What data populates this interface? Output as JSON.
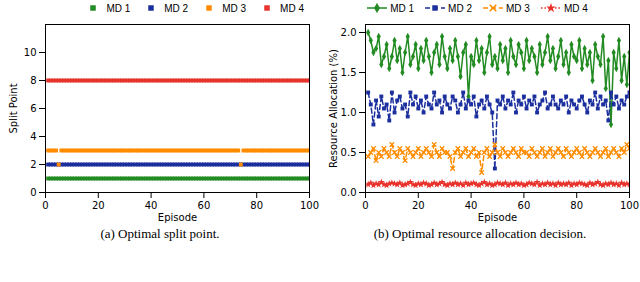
{
  "chart_data": [
    {
      "type": "scatter",
      "caption": "(a) Optimal split point.",
      "x_label": "Episode",
      "y_label": "Split Point",
      "xlim": [
        0,
        100
      ],
      "xticks": [
        0,
        20,
        40,
        60,
        80,
        100
      ],
      "ylim": [
        0,
        12
      ],
      "yticks": [
        0,
        2,
        4,
        6,
        8,
        10
      ],
      "grid": false,
      "legend": "top right",
      "x": [
        1,
        2,
        3,
        4,
        5,
        6,
        7,
        8,
        9,
        10,
        11,
        12,
        13,
        14,
        15,
        16,
        17,
        18,
        19,
        20,
        21,
        22,
        23,
        24,
        25,
        26,
        27,
        28,
        29,
        30,
        31,
        32,
        33,
        34,
        35,
        36,
        37,
        38,
        39,
        40,
        41,
        42,
        43,
        44,
        45,
        46,
        47,
        48,
        49,
        50,
        51,
        52,
        53,
        54,
        55,
        56,
        57,
        58,
        59,
        60,
        61,
        62,
        63,
        64,
        65,
        66,
        67,
        68,
        69,
        70,
        71,
        72,
        73,
        74,
        75,
        76,
        77,
        78,
        79,
        80,
        81,
        82,
        83,
        84,
        85,
        86,
        87,
        88,
        89,
        90,
        91,
        92,
        93,
        94,
        95,
        96,
        97,
        98,
        99,
        100
      ],
      "series": [
        {
          "name": "MD 1",
          "color": "#228b22",
          "marker": "square",
          "values": [
            1,
            1,
            1,
            1,
            1,
            1,
            1,
            1,
            1,
            1,
            1,
            1,
            1,
            1,
            1,
            1,
            1,
            1,
            1,
            1,
            1,
            1,
            1,
            1,
            1,
            1,
            1,
            1,
            1,
            1,
            1,
            1,
            1,
            1,
            1,
            1,
            1,
            1,
            1,
            1,
            1,
            1,
            1,
            1,
            1,
            1,
            1,
            1,
            1,
            1,
            1,
            1,
            1,
            1,
            1,
            1,
            1,
            1,
            1,
            1,
            1,
            1,
            1,
            1,
            1,
            1,
            1,
            1,
            1,
            1,
            1,
            1,
            1,
            1,
            1,
            1,
            1,
            1,
            1,
            1,
            1,
            1,
            1,
            1,
            1,
            1,
            1,
            1,
            1,
            1,
            1,
            1,
            1,
            1,
            1,
            1,
            1,
            1,
            1,
            1
          ]
        },
        {
          "name": "MD 2",
          "color": "#1c2f9e",
          "marker": "square",
          "values": [
            2,
            2,
            2,
            2,
            2,
            2,
            2,
            2,
            2,
            2,
            2,
            2,
            2,
            2,
            2,
            2,
            2,
            2,
            2,
            2,
            2,
            2,
            2,
            2,
            2,
            2,
            2,
            2,
            2,
            2,
            2,
            2,
            2,
            2,
            2,
            2,
            2,
            2,
            2,
            2,
            2,
            2,
            2,
            2,
            2,
            2,
            2,
            2,
            2,
            2,
            2,
            2,
            2,
            2,
            2,
            2,
            2,
            2,
            2,
            2,
            2,
            2,
            2,
            2,
            2,
            2,
            2,
            2,
            2,
            2,
            2,
            2,
            2,
            2,
            2,
            2,
            2,
            2,
            2,
            2,
            2,
            2,
            2,
            2,
            2,
            2,
            2,
            2,
            2,
            2,
            2,
            2,
            2,
            2,
            2,
            2,
            2,
            2,
            2,
            2
          ]
        },
        {
          "name": "MD 3",
          "color": "#ff8c00",
          "marker": "square",
          "values": [
            3,
            3,
            3,
            3,
            2,
            3,
            3,
            3,
            3,
            3,
            3,
            3,
            3,
            3,
            3,
            3,
            3,
            3,
            3,
            3,
            3,
            3,
            3,
            3,
            3,
            3,
            3,
            3,
            3,
            3,
            3,
            3,
            3,
            3,
            3,
            3,
            3,
            3,
            3,
            3,
            3,
            3,
            3,
            3,
            3,
            3,
            3,
            3,
            3,
            3,
            3,
            3,
            3,
            3,
            3,
            3,
            3,
            3,
            3,
            3,
            3,
            3,
            3,
            3,
            3,
            3,
            3,
            3,
            3,
            3,
            3,
            3,
            3,
            2,
            3,
            3,
            3,
            3,
            3,
            3,
            3,
            3,
            3,
            3,
            3,
            3,
            3,
            3,
            3,
            3,
            3,
            3,
            3,
            3,
            3,
            3,
            3,
            3,
            3,
            3
          ]
        },
        {
          "name": "MD 4",
          "color": "#e8322c",
          "marker": "square",
          "values": [
            8,
            8,
            8,
            8,
            8,
            8,
            8,
            8,
            8,
            8,
            8,
            8,
            8,
            8,
            8,
            8,
            8,
            8,
            8,
            8,
            8,
            8,
            8,
            8,
            8,
            8,
            8,
            8,
            8,
            8,
            8,
            8,
            8,
            8,
            8,
            8,
            8,
            8,
            8,
            8,
            8,
            8,
            8,
            8,
            8,
            8,
            8,
            8,
            8,
            8,
            8,
            8,
            8,
            8,
            8,
            8,
            8,
            8,
            8,
            8,
            8,
            8,
            8,
            8,
            8,
            8,
            8,
            8,
            8,
            8,
            8,
            8,
            8,
            8,
            8,
            8,
            8,
            8,
            8,
            8,
            8,
            8,
            8,
            8,
            8,
            8,
            8,
            8,
            8,
            8,
            8,
            8,
            8,
            8,
            8,
            8,
            8,
            8,
            8,
            8
          ]
        }
      ]
    },
    {
      "type": "line",
      "caption": "(b) Optimal resource allocation decision.",
      "x_label": "Episode",
      "y_label": "Resource Allocation (%)",
      "xlim": [
        0,
        100
      ],
      "xticks": [
        0,
        20,
        40,
        60,
        80,
        100
      ],
      "ylim": [
        0,
        2.1
      ],
      "yticks": [
        {
          "value": 0,
          "label": "0.0"
        },
        {
          "value": 0.5,
          "label": "0.5"
        },
        {
          "value": 1,
          "label": "1.0"
        },
        {
          "value": 1.5,
          "label": "1.5"
        },
        {
          "value": 2,
          "label": "2.0"
        }
      ],
      "grid": false,
      "legend": "top",
      "x": [
        1,
        2,
        3,
        4,
        5,
        6,
        7,
        8,
        9,
        10,
        11,
        12,
        13,
        14,
        15,
        16,
        17,
        18,
        19,
        20,
        21,
        22,
        23,
        24,
        25,
        26,
        27,
        28,
        29,
        30,
        31,
        32,
        33,
        34,
        35,
        36,
        37,
        38,
        39,
        40,
        41,
        42,
        43,
        44,
        45,
        46,
        47,
        48,
        49,
        50,
        51,
        52,
        53,
        54,
        55,
        56,
        57,
        58,
        59,
        60,
        61,
        62,
        63,
        64,
        65,
        66,
        67,
        68,
        69,
        70,
        71,
        72,
        73,
        74,
        75,
        76,
        77,
        78,
        79,
        80,
        81,
        82,
        83,
        84,
        85,
        86,
        87,
        88,
        89,
        90,
        91,
        92,
        93,
        94,
        95,
        96,
        97,
        98,
        99,
        100
      ],
      "series": [
        {
          "name": "MD 1",
          "color": "#228b22",
          "marker": "diamond",
          "line_style": "solid",
          "values": [
            2.0,
            1.9,
            1.75,
            1.8,
            1.95,
            1.6,
            1.7,
            1.85,
            1.55,
            1.7,
            1.9,
            1.65,
            1.8,
            1.5,
            1.75,
            1.95,
            1.6,
            1.7,
            1.85,
            1.55,
            1.8,
            1.65,
            1.9,
            1.7,
            1.5,
            1.75,
            1.85,
            1.6,
            1.95,
            1.7,
            1.55,
            1.8,
            1.65,
            1.9,
            1.7,
            1.45,
            1.75,
            1.85,
            1.2,
            1.7,
            1.6,
            1.9,
            1.65,
            1.8,
            1.5,
            1.75,
            1.95,
            1.6,
            1.7,
            1.55,
            1.85,
            1.65,
            1.8,
            1.5,
            1.9,
            1.7,
            1.6,
            1.85,
            1.75,
            1.55,
            1.9,
            1.65,
            1.8,
            1.7,
            1.5,
            1.85,
            1.6,
            1.75,
            1.95,
            1.65,
            1.8,
            1.55,
            1.7,
            1.9,
            1.6,
            1.75,
            1.5,
            1.85,
            1.7,
            1.65,
            1.9,
            1.55,
            1.8,
            1.6,
            1.75,
            1.4,
            1.85,
            1.7,
            1.6,
            1.95,
            1.3,
            1.65,
            0.85,
            1.75,
            1.55,
            1.9,
            1.4,
            1.7,
            1.35,
            1.75
          ]
        },
        {
          "name": "MD 2",
          "color": "#1c2f9e",
          "marker": "square",
          "line_style": "dashed",
          "values": [
            1.25,
            1.1,
            0.85,
            1.15,
            0.95,
            1.2,
            1.05,
            1.1,
            0.9,
            1.25,
            1.0,
            1.15,
            1.2,
            1.05,
            1.1,
            0.95,
            1.25,
            1.1,
            1.2,
            1.05,
            1.15,
            1.0,
            1.2,
            1.1,
            1.05,
            1.25,
            1.1,
            1.15,
            1.0,
            1.2,
            1.1,
            1.05,
            1.2,
            1.15,
            1.0,
            1.1,
            1.25,
            1.05,
            1.15,
            1.1,
            1.2,
            0.95,
            1.1,
            1.15,
            1.05,
            1.2,
            1.1,
            1.0,
            0.3,
            1.15,
            1.1,
            1.2,
            1.05,
            1.15,
            1.1,
            1.25,
            1.0,
            1.15,
            1.1,
            1.2,
            1.05,
            1.15,
            1.1,
            1.2,
            1.0,
            1.1,
            1.15,
            1.25,
            1.05,
            1.1,
            1.2,
            1.1,
            1.05,
            1.15,
            1.1,
            1.2,
            1.0,
            1.15,
            1.1,
            1.05,
            1.15,
            1.2,
            1.1,
            1.0,
            1.15,
            1.1,
            1.25,
            1.05,
            1.2,
            1.1,
            1.15,
            0.9,
            1.25,
            1.1,
            1.2,
            1.05,
            1.15,
            1.1,
            1.2,
            1.25
          ]
        },
        {
          "name": "MD 3",
          "color": "#ff8c00",
          "marker": "x",
          "line_style": "dashed",
          "values": [
            0.45,
            0.5,
            0.55,
            0.4,
            0.5,
            0.45,
            0.55,
            0.5,
            0.45,
            0.6,
            0.5,
            0.45,
            0.55,
            0.5,
            0.4,
            0.55,
            0.5,
            0.45,
            0.5,
            0.55,
            0.45,
            0.5,
            0.55,
            0.5,
            0.45,
            0.6,
            0.5,
            0.45,
            0.55,
            0.5,
            0.5,
            0.45,
            0.3,
            0.5,
            0.55,
            0.45,
            0.5,
            0.55,
            0.45,
            0.5,
            0.55,
            0.45,
            0.5,
            0.25,
            0.5,
            0.55,
            0.45,
            0.5,
            0.6,
            0.5,
            0.45,
            0.55,
            0.5,
            0.45,
            0.5,
            0.55,
            0.5,
            0.45,
            0.55,
            0.5,
            0.5,
            0.45,
            0.55,
            0.5,
            0.45,
            0.5,
            0.55,
            0.45,
            0.5,
            0.55,
            0.45,
            0.5,
            0.55,
            0.5,
            0.45,
            0.55,
            0.5,
            0.45,
            0.5,
            0.55,
            0.5,
            0.45,
            0.55,
            0.5,
            0.45,
            0.5,
            0.55,
            0.5,
            0.45,
            0.5,
            0.55,
            0.45,
            0.5,
            0.55,
            0.5,
            0.45,
            0.55,
            0.5,
            0.6,
            0.55
          ]
        },
        {
          "name": "MD 4",
          "color": "#e8322c",
          "marker": "star",
          "line_style": "dotted",
          "values": [
            0.1,
            0.12,
            0.09,
            0.11,
            0.1,
            0.13,
            0.1,
            0.09,
            0.11,
            0.12,
            0.11,
            0.1,
            0.12,
            0.09,
            0.1,
            0.11,
            0.13,
            0.1,
            0.09,
            0.11,
            0.1,
            0.12,
            0.11,
            0.09,
            0.1,
            0.12,
            0.1,
            0.11,
            0.13,
            0.1,
            0.09,
            0.11,
            0.1,
            0.12,
            0.1,
            0.11,
            0.09,
            0.12,
            0.1,
            0.11,
            0.12,
            0.1,
            0.09,
            0.11,
            0.13,
            0.1,
            0.11,
            0.09,
            0.1,
            0.12,
            0.11,
            0.1,
            0.12,
            0.09,
            0.11,
            0.1,
            0.12,
            0.1,
            0.11,
            0.09,
            0.1,
            0.12,
            0.11,
            0.1,
            0.13,
            0.09,
            0.11,
            0.1,
            0.12,
            0.1,
            0.11,
            0.09,
            0.12,
            0.1,
            0.11,
            0.1,
            0.12,
            0.09,
            0.11,
            0.1,
            0.12,
            0.11,
            0.1,
            0.09,
            0.12,
            0.1,
            0.11,
            0.13,
            0.1,
            0.09,
            0.11,
            0.1,
            0.12,
            0.1,
            0.11,
            0.09,
            0.12,
            0.1,
            0.11,
            0.1
          ]
        }
      ]
    }
  ]
}
